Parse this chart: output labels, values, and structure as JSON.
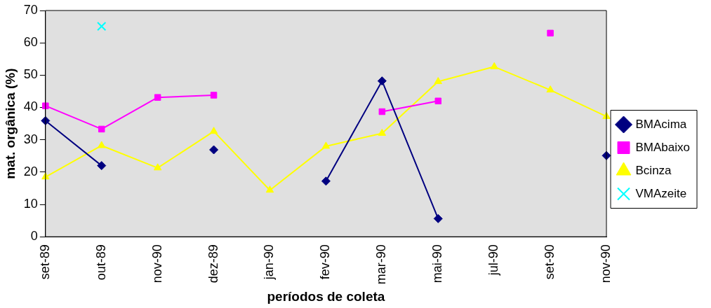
{
  "chart_data": {
    "type": "line",
    "xlabel": "períodos de coleta",
    "ylabel": "mat. orgânica (%)",
    "categories": [
      "set-89",
      "out-89",
      "nov-90",
      "dez-89",
      "jan-90",
      "fev-90",
      "mar-90",
      "mai-90",
      "jul-90",
      "set-90",
      "nov-90"
    ],
    "ylim": [
      0,
      70
    ],
    "yticks": [
      0,
      10,
      20,
      30,
      40,
      50,
      60,
      70
    ],
    "grid": false,
    "legend": "right",
    "series": [
      {
        "name": "BMAcima",
        "color": "#000080",
        "marker": "diamond",
        "values": [
          35.9,
          22,
          null,
          26.9,
          null,
          17.2,
          48.2,
          5.6,
          null,
          null,
          25.1
        ]
      },
      {
        "name": "BMAbaixo",
        "color": "#ff00ff",
        "marker": "square",
        "values": [
          40.5,
          33.3,
          43.1,
          43.8,
          null,
          null,
          38.7,
          42,
          null,
          63,
          null
        ]
      },
      {
        "name": "Bcinza",
        "color": "#ffff00",
        "marker": "triangle",
        "values": [
          18.5,
          28.2,
          21.3,
          32.6,
          14.4,
          28,
          32,
          48,
          52.6,
          45.4,
          37.2
        ]
      },
      {
        "name": "VMAzeite",
        "color": "#00ffff",
        "marker": "cross",
        "values": [
          null,
          65.1,
          null,
          null,
          null,
          null,
          null,
          null,
          null,
          null,
          null
        ]
      }
    ]
  }
}
